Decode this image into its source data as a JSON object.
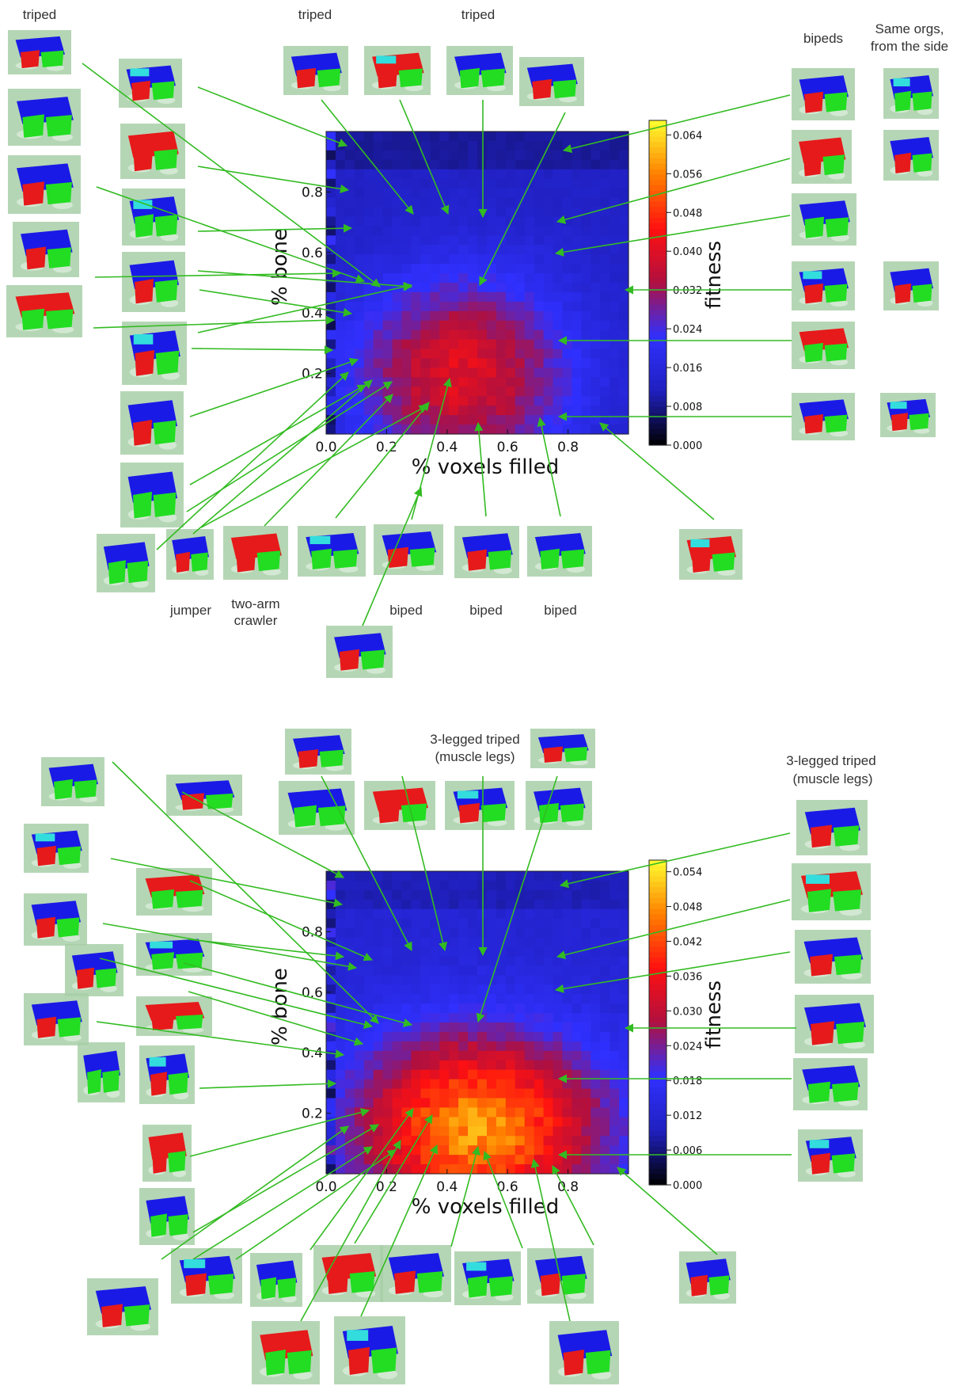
{
  "colors": {
    "arrow": "#33bb22",
    "voxel_blue": "#1a1ae6",
    "voxel_red": "#e61a1a",
    "voxel_green": "#22dd22",
    "voxel_cyan": "#33dddd",
    "floor": "#a8cfa8",
    "colormap": [
      "#000000",
      "#2020c0",
      "#3030ff",
      "#b01040",
      "#ff1010",
      "#ff8000",
      "#ffff30"
    ]
  },
  "chart_data": [
    {
      "type": "heatmap",
      "xlabel": "% voxels filled",
      "ylabel": "% bone",
      "colorbar_label": "fitness",
      "xlim": [
        0,
        1
      ],
      "ylim": [
        0,
        1
      ],
      "xticks": [
        "0.0",
        "0.2",
        "0.4",
        "0.6",
        "0.8"
      ],
      "yticks": [
        "0.2",
        "0.4",
        "0.6",
        "0.8"
      ],
      "colorbar_ticks": [
        "0.064",
        "0.056",
        "0.048",
        "0.040",
        "0.032",
        "0.024",
        "0.016",
        "0.008",
        "0.000"
      ],
      "clim": [
        0,
        0.067
      ],
      "peak": {
        "x": 0.45,
        "y": 0.2
      },
      "annotations": [
        "triped",
        "triped",
        "triped",
        "bipeds",
        "Same orgs,",
        "from the side",
        "jumper",
        "two-arm",
        "crawler",
        "biped",
        "biped",
        "biped"
      ]
    },
    {
      "type": "heatmap",
      "xlabel": "% voxels filled",
      "ylabel": "% bone",
      "colorbar_label": "fitness",
      "xlim": [
        0,
        1
      ],
      "ylim": [
        0,
        1
      ],
      "xticks": [
        "0.0",
        "0.2",
        "0.4",
        "0.6",
        "0.8"
      ],
      "yticks": [
        "0.2",
        "0.4",
        "0.6",
        "0.8"
      ],
      "colorbar_ticks": [
        "0.054",
        "0.048",
        "0.042",
        "0.036",
        "0.030",
        "0.024",
        "0.018",
        "0.012",
        "0.006",
        "0.000"
      ],
      "clim": [
        0,
        0.056
      ],
      "peak": {
        "x": 0.5,
        "y": 0.15
      },
      "annotations": [
        "3-legged triped",
        "(muscle legs)",
        "3-legged triped",
        "(muscle legs)"
      ]
    }
  ]
}
